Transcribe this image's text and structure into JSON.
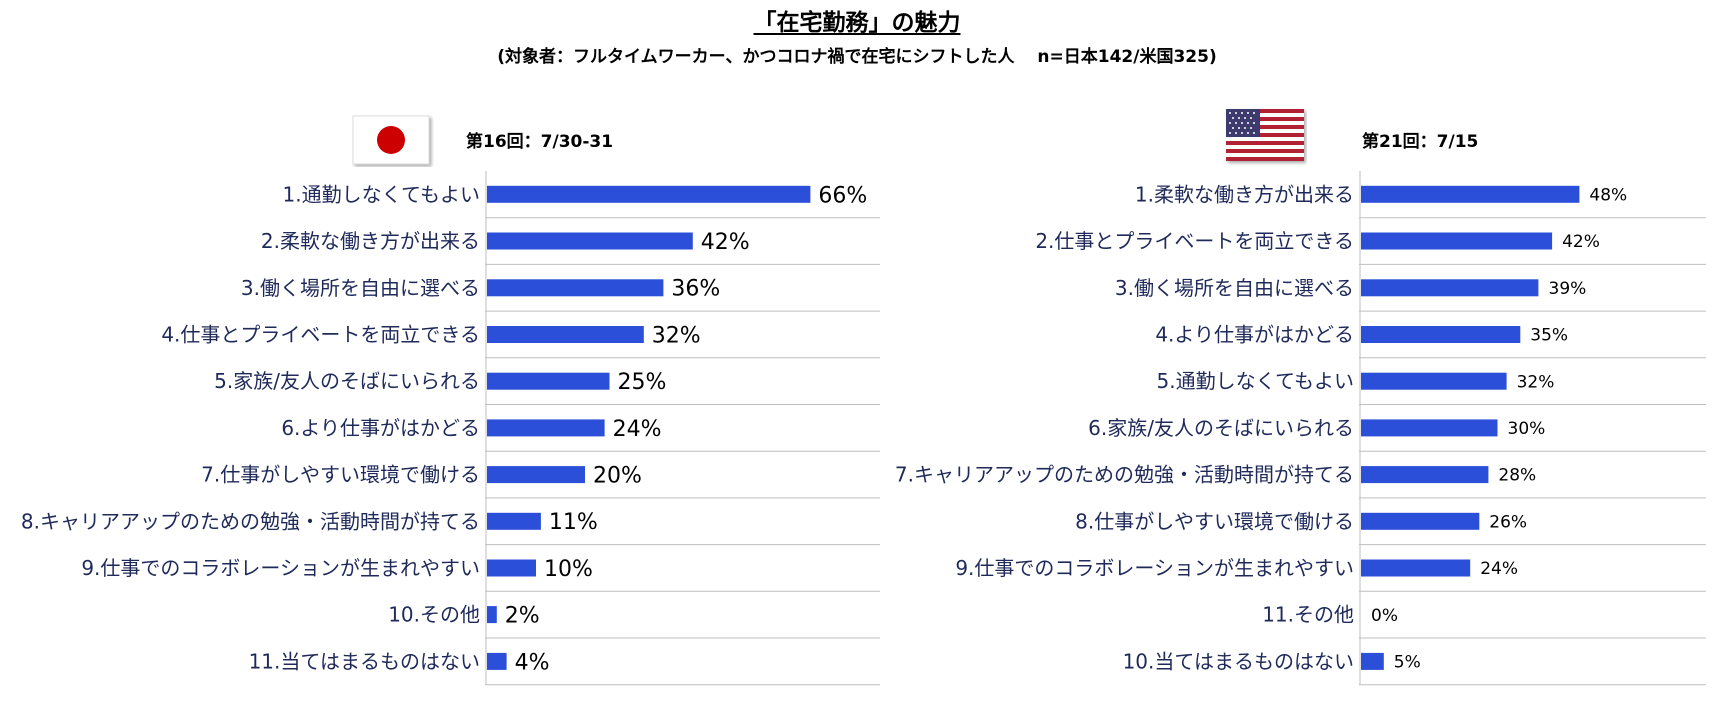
{
  "header": {
    "title": "「在宅勤務」の魅力",
    "subtitle": "(対象者：フルタイムワーカー、かつコロナ禍で在宅にシフトした人　 n=日本142/米国325)"
  },
  "colors": {
    "bar": "#2b4fd8",
    "gridline": "#bfbfbf",
    "label": "#1f2a5a"
  },
  "panels": [
    {
      "flag": "japan-flag",
      "round_label": "第16回：7/30-31"
    },
    {
      "flag": "usa-flag",
      "round_label": "第21回：7/15"
    }
  ],
  "chart_data": [
    {
      "type": "bar",
      "orientation": "horizontal",
      "categories": [
        "1.通勤しなくてもよい",
        "2.柔軟な働き方が出来る",
        "3.働く場所を自由に選べる",
        "4.仕事とプライベートを両立できる",
        "5.家族/友人のそばにいられる",
        "6.より仕事がはかどる",
        "7.仕事がしやすい環境で働ける",
        "8.キャリアアップのための勉強・活動時間が持てる",
        "9.仕事でのコラボレーションが生まれやすい",
        "10.その他",
        "11.当てはまるものはない"
      ],
      "values": [
        66,
        42,
        36,
        32,
        25,
        24,
        20,
        11,
        10,
        2,
        4
      ],
      "value_labels": [
        "66%",
        "42%",
        "36%",
        "32%",
        "25%",
        "24%",
        "20%",
        "11%",
        "10%",
        "2%",
        "4%"
      ],
      "xlim": [
        0,
        100
      ],
      "grid": false
    },
    {
      "type": "bar",
      "orientation": "horizontal",
      "categories": [
        "1.柔軟な働き方が出来る",
        "2.仕事とプライベートを両立できる",
        "3.働く場所を自由に選べる",
        "4.より仕事がはかどる",
        "5.通勤しなくてもよい",
        "6.家族/友人のそばにいられる",
        "7.キャリアアップのための勉強・活動時間が持てる",
        "8.仕事がしやすい環境で働ける",
        "9.仕事でのコラボレーションが生まれやすい",
        "11.その他",
        "10.当てはまるものはない"
      ],
      "values": [
        48,
        42,
        39,
        35,
        32,
        30,
        28,
        26,
        24,
        0,
        5
      ],
      "value_labels": [
        "48%",
        "42%",
        "39%",
        "35%",
        "32%",
        "30%",
        "28%",
        "26%",
        "24%",
        "0%",
        "5%"
      ],
      "xlim": [
        0,
        100
      ],
      "grid": false
    }
  ]
}
